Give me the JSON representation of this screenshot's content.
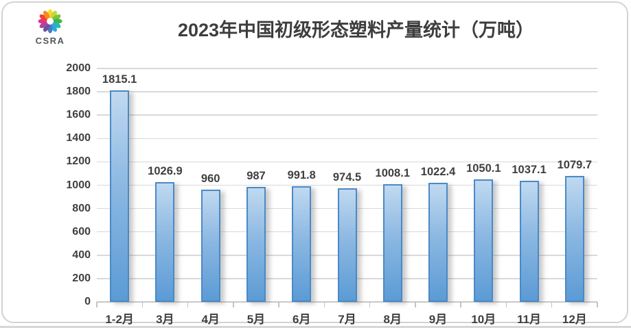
{
  "header": {
    "logo_text": "CSRA",
    "title": "2023年中国初级形态塑料产量统计（万吨）"
  },
  "logo": {
    "icon": "flower-logo-icon",
    "petal_colors": [
      "#f7d82e",
      "#c3d832",
      "#7fc241",
      "#3bb54a",
      "#2bb6ad",
      "#29a9e0",
      "#4b7bc0",
      "#6a52a3",
      "#a0499d",
      "#e62e8b",
      "#ee4035",
      "#f68b1f"
    ]
  },
  "chart_data": {
    "type": "bar",
    "title": "2023年中国初级形态塑料产量统计（万吨）",
    "categories": [
      "1-2月",
      "3月",
      "4月",
      "5月",
      "6月",
      "7月",
      "8月",
      "9月",
      "10月",
      "11月",
      "12月"
    ],
    "values": [
      1815.1,
      1026.9,
      960,
      987,
      991.8,
      974.5,
      1008.1,
      1022.4,
      1050.1,
      1037.1,
      1079.7
    ],
    "data_labels": [
      "1815.1",
      "1026.9",
      "960",
      "987",
      "991.8",
      "974.5",
      "1008.1",
      "1022.4",
      "1050.1",
      "1037.1",
      "1079.7"
    ],
    "xlabel": "",
    "ylabel": "",
    "ylim": [
      0,
      2000
    ],
    "ytick_step": 200,
    "grid": true,
    "legend": "none",
    "colors": {
      "bar_fill_top": "#c0d9f0",
      "bar_fill_bottom": "#5b9bd5",
      "bar_border": "#4a89c6",
      "label_color": "#3f3f3f",
      "gridline_color": "#d9d9d9",
      "axis_color": "#c8c8c8"
    }
  }
}
